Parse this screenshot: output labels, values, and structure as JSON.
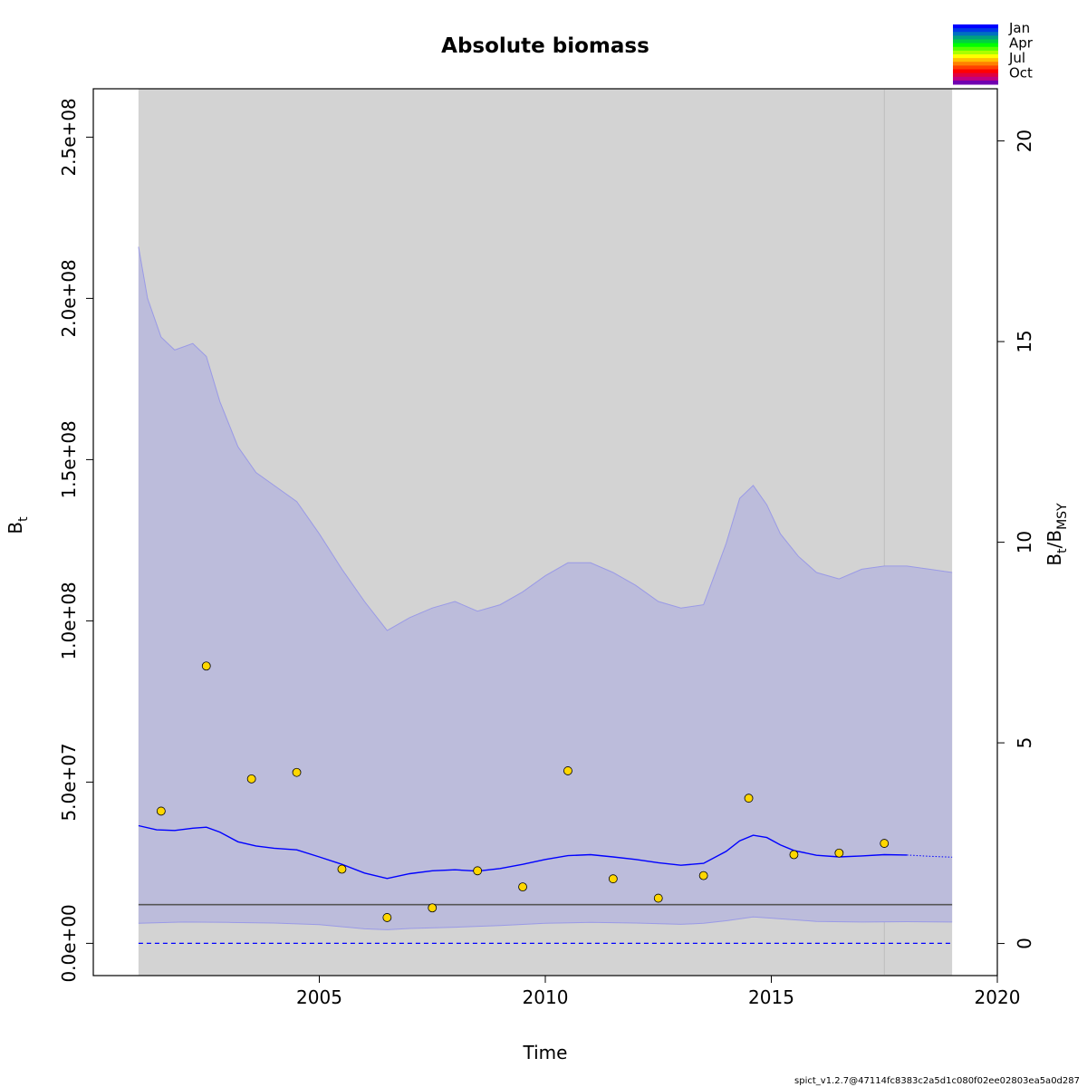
{
  "chart_data": {
    "type": "line",
    "title": "Absolute biomass",
    "xlabel": "Time",
    "ylabel": "B",
    "ylabel_sub": "t",
    "y2label_num": "B",
    "y2label_num_sub": "t",
    "y2label_den": "B",
    "y2label_den_sub": "MSY",
    "xlim": [
      2000,
      2020
    ],
    "ylim": [
      -10000000,
      265000000
    ],
    "y2lim": [
      -0.8,
      21.3
    ],
    "x_ticks": [
      2005,
      2010,
      2015,
      2020
    ],
    "x_tick_labels": [
      "2005",
      "2010",
      "2015",
      "2020"
    ],
    "y_ticks": [
      0,
      50000000,
      100000000,
      150000000,
      200000000,
      250000000
    ],
    "y_tick_labels": [
      "0.0e+00",
      "5.0e+07",
      "1.0e+08",
      "1.5e+08",
      "2.0e+08",
      "2.5e+08"
    ],
    "y2_ticks": [
      0,
      5,
      10,
      15,
      20
    ],
    "y2_tick_labels": [
      "0",
      "5",
      "10",
      "15",
      "20"
    ],
    "shaded_background": {
      "x_start": 2001,
      "x_end": 2019,
      "color": "#d3d3d3"
    },
    "forecast_start": 2018,
    "vline_x": 2017.5,
    "bmsy_level": 12000000,
    "zero_level": 0,
    "ci_upper": {
      "x": [
        2001,
        2001.2,
        2001.5,
        2001.8,
        2002.2,
        2002.5,
        2002.8,
        2003.2,
        2003.6,
        2004.0,
        2004.5,
        2005.0,
        2005.5,
        2006.0,
        2006.5,
        2007.0,
        2007.5,
        2008.0,
        2008.5,
        2009.0,
        2009.5,
        2010.0,
        2010.5,
        2011.0,
        2011.5,
        2012.0,
        2012.5,
        2013.0,
        2013.5,
        2014.0,
        2014.3,
        2014.6,
        2014.9,
        2015.2,
        2015.6,
        2016.0,
        2016.5,
        2017.0,
        2017.5,
        2018.0,
        2018.5,
        2019.0
      ],
      "y": [
        216000000,
        200000000,
        188000000,
        184000000,
        186000000,
        182000000,
        168000000,
        154000000,
        146000000,
        142000000,
        137000000,
        127000000,
        116000000,
        106000000,
        97000000,
        101000000,
        104000000,
        106000000,
        103000000,
        105000000,
        109000000,
        114000000,
        118000000,
        118000000,
        115000000,
        111000000,
        106000000,
        104000000,
        105000000,
        124000000,
        138000000,
        142000000,
        136000000,
        127000000,
        120000000,
        115000000,
        113000000,
        116000000,
        117000000,
        117000000,
        116000000,
        115000000
      ]
    },
    "ci_lower": {
      "x": [
        2001,
        2002,
        2003,
        2004,
        2005,
        2006,
        2006.5,
        2007,
        2008,
        2009,
        2010,
        2011,
        2012,
        2013,
        2013.5,
        2014,
        2014.6,
        2015,
        2016,
        2017,
        2018,
        2019
      ],
      "y": [
        6200000,
        6600000,
        6500000,
        6300000,
        5800000,
        4500000,
        4200000,
        4600000,
        5000000,
        5500000,
        6200000,
        6500000,
        6300000,
        5900000,
        6200000,
        7000000,
        8200000,
        7800000,
        6800000,
        6600000,
        6700000,
        6600000
      ]
    },
    "series": [
      {
        "style": "solid",
        "color": "#0000ff",
        "x": [
          2001,
          2001.4,
          2001.8,
          2002.2,
          2002.5,
          2002.8,
          2003.2,
          2003.6,
          2004.0,
          2004.5,
          2005.0,
          2005.5,
          2006.0,
          2006.5,
          2007.0,
          2007.5,
          2008.0,
          2008.5,
          2009.0,
          2009.5,
          2010.0,
          2010.5,
          2011.0,
          2011.5,
          2012.0,
          2012.5,
          2013.0,
          2013.5,
          2014.0,
          2014.3,
          2014.6,
          2014.9,
          2015.2,
          2015.5,
          2016.0,
          2016.5,
          2017.0,
          2017.5,
          2018.0
        ],
        "y": [
          36500000,
          35200000,
          35000000,
          35700000,
          36000000,
          34500000,
          31500000,
          30200000,
          29500000,
          29000000,
          26800000,
          24500000,
          21800000,
          20100000,
          21600000,
          22500000,
          22800000,
          22400000,
          23200000,
          24500000,
          26000000,
          27200000,
          27500000,
          26800000,
          26000000,
          25000000,
          24200000,
          24800000,
          28500000,
          31800000,
          33500000,
          32800000,
          30500000,
          28800000,
          27300000,
          26800000,
          27100000,
          27500000,
          27400000
        ]
      },
      {
        "style": "dotted",
        "color": "#0000ff",
        "x": [
          2018.0,
          2018.5,
          2019.0
        ],
        "y": [
          27400000,
          27000000,
          26700000
        ]
      }
    ],
    "observations": {
      "color": "#ffd700",
      "x": [
        2001.5,
        2002.5,
        2003.5,
        2004.5,
        2005.5,
        2006.5,
        2007.5,
        2008.5,
        2009.5,
        2010.5,
        2011.5,
        2012.5,
        2013.5,
        2014.5,
        2015.5,
        2016.5,
        2017.5
      ],
      "y": [
        41000000,
        86000000,
        51000000,
        53000000,
        23000000,
        8000000,
        11000000,
        22500000,
        17500000,
        53500000,
        20000000,
        14000000,
        21000000,
        45000000,
        27500000,
        28000000,
        31000000
      ]
    },
    "legend": {
      "placement": "top-right",
      "labels": [
        "Jan",
        "Apr",
        "Jul",
        "Oct"
      ],
      "colors": [
        "#0000ff",
        "#0038e6",
        "#0070c0",
        "#00a080",
        "#00d040",
        "#00ff00",
        "#55ff00",
        "#aaff00",
        "#ffff00",
        "#ffc000",
        "#ff8000",
        "#ff4000",
        "#ff0000",
        "#e00040",
        "#c00080",
        "#7000b0"
      ]
    },
    "footer": "spict_v1.2.7@47114fc8383c2a5d1c080f02ee02803ea5a0d287"
  }
}
